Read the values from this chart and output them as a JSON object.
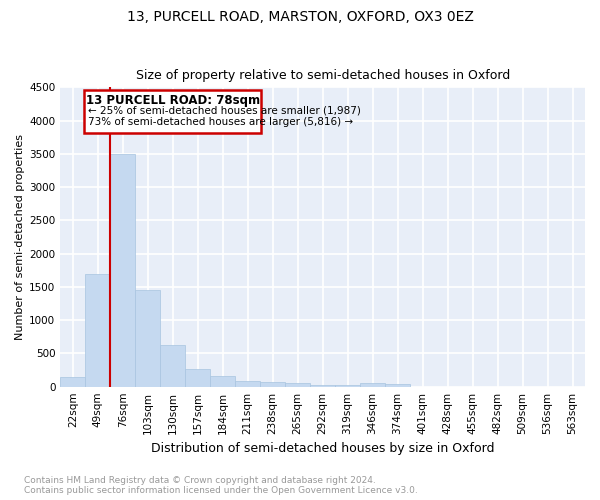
{
  "title_line1": "13, PURCELL ROAD, MARSTON, OXFORD, OX3 0EZ",
  "title_line2": "Size of property relative to semi-detached houses in Oxford",
  "xlabel": "Distribution of semi-detached houses by size in Oxford",
  "ylabel": "Number of semi-detached properties",
  "footnote": "Contains HM Land Registry data © Crown copyright and database right 2024.\nContains public sector information licensed under the Open Government Licence v3.0.",
  "categories": [
    "22sqm",
    "49sqm",
    "76sqm",
    "103sqm",
    "130sqm",
    "157sqm",
    "184sqm",
    "211sqm",
    "238sqm",
    "265sqm",
    "292sqm",
    "319sqm",
    "346sqm",
    "374sqm",
    "401sqm",
    "428sqm",
    "455sqm",
    "482sqm",
    "509sqm",
    "536sqm",
    "563sqm"
  ],
  "values": [
    150,
    1700,
    3500,
    1450,
    620,
    270,
    160,
    90,
    70,
    50,
    30,
    20,
    50,
    40,
    0,
    0,
    0,
    0,
    0,
    0,
    0
  ],
  "bar_color": "#c5d9f0",
  "bar_edge_color": "#a8c4e0",
  "background_color": "#e8eef8",
  "grid_color": "#ffffff",
  "red_line_x": 2.0,
  "red_line_label": "13 PURCELL ROAD: 78sqm",
  "annotation_line1": "← 25% of semi-detached houses are smaller (1,987)",
  "annotation_line2": "73% of semi-detached houses are larger (5,816) →",
  "box_color": "#cc0000",
  "ylim": [
    0,
    4500
  ],
  "yticks": [
    0,
    500,
    1000,
    1500,
    2000,
    2500,
    3000,
    3500,
    4000,
    4500
  ],
  "title1_fontsize": 10,
  "title2_fontsize": 9,
  "ylabel_fontsize": 8,
  "xlabel_fontsize": 9,
  "tick_fontsize": 7.5,
  "footnote_fontsize": 6.5
}
